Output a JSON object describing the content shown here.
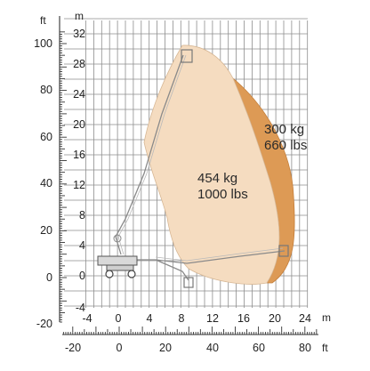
{
  "units": {
    "left_outer": "ft",
    "left_inner": "m",
    "bottom_inner": "m",
    "bottom_outer": "ft"
  },
  "axes": {
    "y_m": {
      "ticks": [
        "32",
        "28",
        "24",
        "20",
        "16",
        "12",
        "8",
        "4",
        "0",
        "-4"
      ]
    },
    "y_ft": {
      "ticks": [
        "100",
        "80",
        "60",
        "40",
        "20",
        "0",
        "-20"
      ]
    },
    "x_m": {
      "ticks": [
        "-4",
        "0",
        "4",
        "8",
        "12",
        "16",
        "20",
        "24"
      ]
    },
    "x_ft": {
      "ticks": [
        "-20",
        "0",
        "20",
        "40",
        "60",
        "80"
      ]
    }
  },
  "zones": {
    "inner": {
      "line1": "454 kg",
      "line2": "1000 lbs",
      "color": "#f5dcc0"
    },
    "outer": {
      "line1": "300 kg",
      "line2": "660 lbs",
      "color": "#dd9a55"
    }
  },
  "colors": {
    "grid": "#8e8e8e",
    "boom": "#8a8a8a",
    "text": "#222222"
  }
}
